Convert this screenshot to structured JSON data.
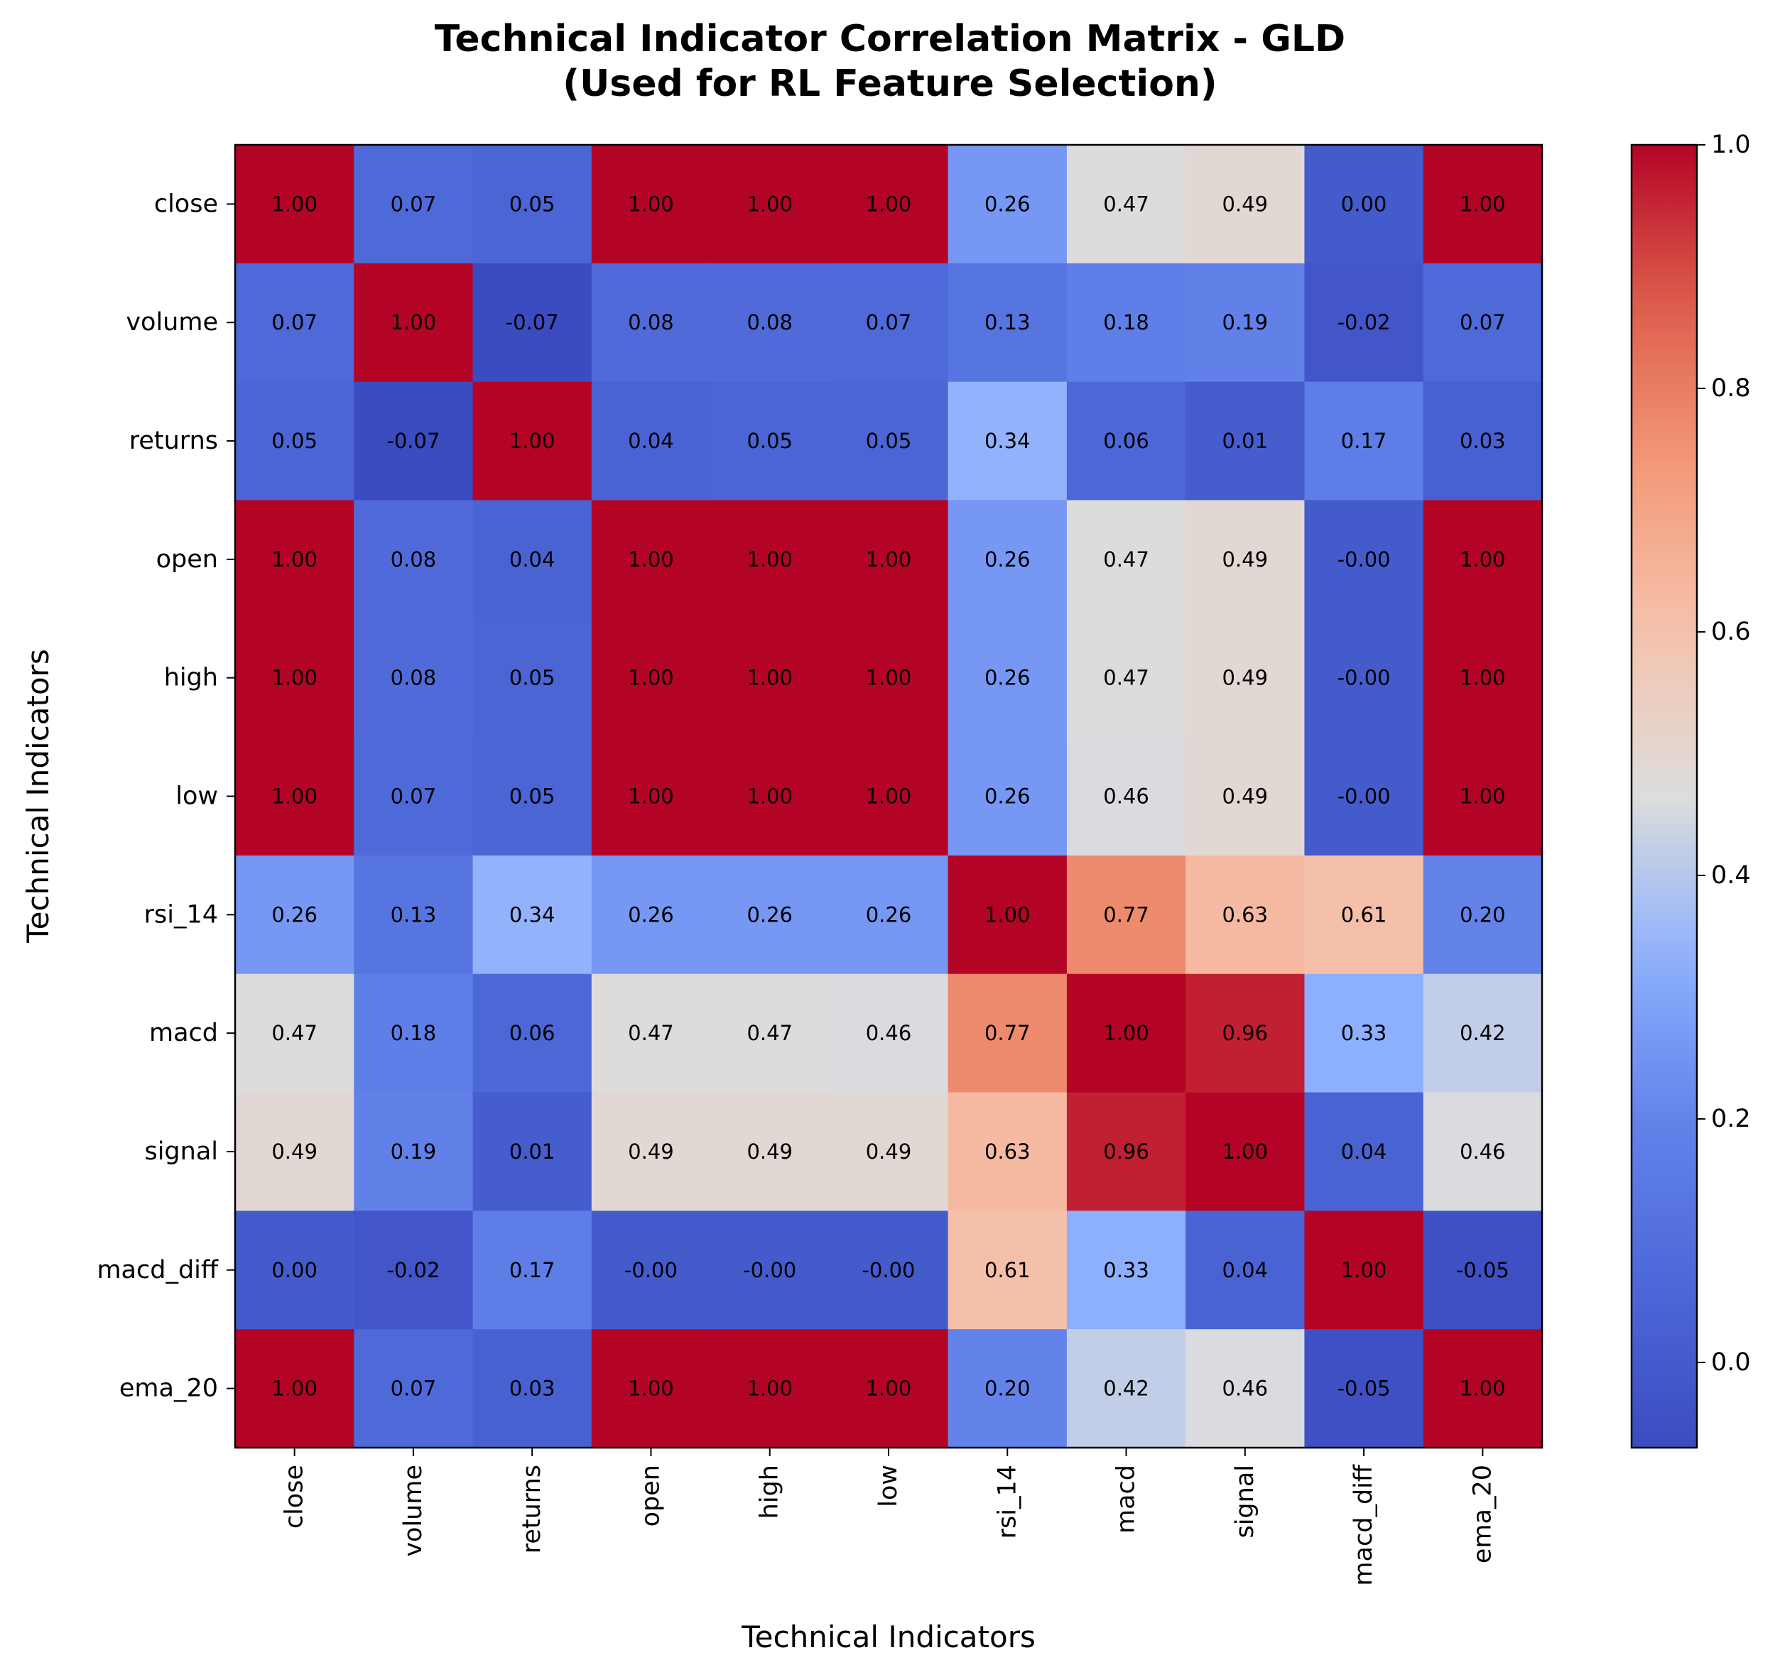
{
  "chart_data": {
    "type": "heatmap",
    "title_lines": [
      "Technical Indicator Correlation Matrix - GLD",
      "(Used for RL Feature Selection)"
    ],
    "xlabel": "Technical Indicators",
    "ylabel": "Technical Indicators",
    "x_categories": [
      "close",
      "volume",
      "returns",
      "open",
      "high",
      "low",
      "rsi_14",
      "macd",
      "signal",
      "macd_diff",
      "ema_20"
    ],
    "y_categories": [
      "close",
      "volume",
      "returns",
      "open",
      "high",
      "low",
      "rsi_14",
      "macd",
      "signal",
      "macd_diff",
      "ema_20"
    ],
    "values": [
      [
        1.0,
        0.07,
        0.05,
        1.0,
        1.0,
        1.0,
        0.26,
        0.47,
        0.49,
        0.0,
        1.0
      ],
      [
        0.07,
        1.0,
        -0.07,
        0.08,
        0.08,
        0.07,
        0.13,
        0.18,
        0.19,
        -0.02,
        0.07
      ],
      [
        0.05,
        -0.07,
        1.0,
        0.04,
        0.05,
        0.05,
        0.34,
        0.06,
        0.01,
        0.17,
        0.03
      ],
      [
        1.0,
        0.08,
        0.04,
        1.0,
        1.0,
        1.0,
        0.26,
        0.47,
        0.49,
        -0.0,
        1.0
      ],
      [
        1.0,
        0.08,
        0.05,
        1.0,
        1.0,
        1.0,
        0.26,
        0.47,
        0.49,
        -0.0,
        1.0
      ],
      [
        1.0,
        0.07,
        0.05,
        1.0,
        1.0,
        1.0,
        0.26,
        0.46,
        0.49,
        -0.0,
        1.0
      ],
      [
        0.26,
        0.13,
        0.34,
        0.26,
        0.26,
        0.26,
        1.0,
        0.77,
        0.63,
        0.61,
        0.2
      ],
      [
        0.47,
        0.18,
        0.06,
        0.47,
        0.47,
        0.46,
        0.77,
        1.0,
        0.96,
        0.33,
        0.42
      ],
      [
        0.49,
        0.19,
        0.01,
        0.49,
        0.49,
        0.49,
        0.63,
        0.96,
        1.0,
        0.04,
        0.46
      ],
      [
        0.0,
        -0.02,
        0.17,
        -0.0,
        -0.0,
        -0.0,
        0.61,
        0.33,
        0.04,
        1.0,
        -0.05
      ],
      [
        1.0,
        0.07,
        0.03,
        1.0,
        1.0,
        1.0,
        0.2,
        0.42,
        0.46,
        -0.05,
        1.0
      ]
    ],
    "colormap": "coolwarm",
    "vmin": -0.07,
    "vmax": 1.0,
    "colorbar_ticks": [
      0.0,
      0.2,
      0.4,
      0.6,
      0.8,
      1.0
    ],
    "colorbar_tick_labels": [
      "0.0",
      "0.2",
      "0.4",
      "0.6",
      "0.8",
      "1.0"
    ],
    "grid": false
  }
}
